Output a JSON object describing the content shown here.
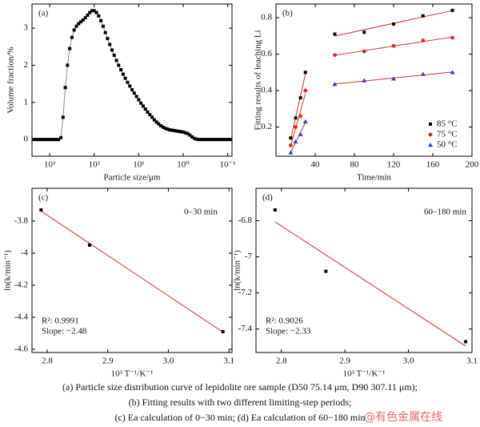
{
  "chart_data": [
    {
      "type": "line",
      "panel_label": "(a)",
      "x_label": "Particle size/μm",
      "y_label": "Volume fraction/%",
      "xscale": "log",
      "xlim": [
        2500,
        0.08
      ],
      "ylim": [
        -0.45,
        3.65
      ],
      "xticks": [
        {
          "value": 1000,
          "label": "10³"
        },
        {
          "value": 100,
          "label": "10²"
        },
        {
          "value": 10,
          "label": "10¹"
        },
        {
          "value": 1,
          "label": "10⁰"
        },
        {
          "value": 0.1,
          "label": "10⁻¹"
        }
      ],
      "yticks": [
        0,
        1,
        2,
        3
      ],
      "series": [
        {
          "color": "#000000",
          "line_color": "#8c8c8c",
          "marker": "square",
          "x": [
            2240,
            2000,
            1780,
            1580,
            1410,
            1260,
            1120,
            1000,
            891,
            794,
            708,
            631,
            562,
            501,
            447,
            398,
            355,
            316,
            282,
            251,
            224,
            200,
            178,
            158,
            141,
            126,
            112,
            100,
            89.1,
            79.4,
            70.8,
            63.1,
            56.2,
            50.1,
            44.7,
            39.8,
            35.5,
            31.6,
            28.2,
            25.1,
            22.4,
            20,
            17.8,
            15.8,
            14.1,
            12.6,
            11.2,
            10,
            8.91,
            7.94,
            7.08,
            6.31,
            5.62,
            5.01,
            4.47,
            3.98,
            3.55,
            3.16,
            2.82,
            2.51,
            2.24,
            2,
            1.78,
            1.58,
            1.41,
            1.26,
            1.12,
            1,
            0.891,
            0.794,
            0.708,
            0.631,
            0.562,
            0.501,
            0.447,
            0.398,
            0.355,
            0.316,
            0.282,
            0.251,
            0.224,
            0.2,
            0.178,
            0.158,
            0.141,
            0.126,
            0.112,
            0.1,
            0.0891
          ],
          "values": [
            0,
            0,
            0,
            0,
            0,
            0,
            0,
            0,
            0,
            0,
            0,
            0,
            0.05,
            0.6,
            1.4,
            2.0,
            2.45,
            2.75,
            2.95,
            3.05,
            3.12,
            3.17,
            3.22,
            3.28,
            3.35,
            3.42,
            3.47,
            3.47,
            3.42,
            3.33,
            3.2,
            3.05,
            2.88,
            2.72,
            2.56,
            2.41,
            2.27,
            2.13,
            2.0,
            1.88,
            1.76,
            1.65,
            1.54,
            1.44,
            1.34,
            1.25,
            1.16,
            1.07,
            0.98,
            0.9,
            0.82,
            0.74,
            0.67,
            0.6,
            0.53,
            0.47,
            0.42,
            0.37,
            0.33,
            0.3,
            0.28,
            0.26,
            0.25,
            0.24,
            0.23,
            0.22,
            0.21,
            0.2,
            0.18,
            0.16,
            0.12,
            0.07,
            0.03,
            0.01,
            0,
            0,
            0,
            0,
            0,
            0,
            0,
            0,
            0,
            0,
            0,
            0,
            0,
            0,
            0
          ]
        }
      ]
    },
    {
      "type": "scatter",
      "panel_label": "(b)",
      "x_label": "Time/min",
      "y_label": "Fitting results of leaching Li",
      "xlim": [
        0,
        200
      ],
      "ylim": [
        0.04,
        0.875
      ],
      "xticks": [
        40,
        80,
        120,
        160,
        200
      ],
      "yticks": [
        0.2,
        0.4,
        0.6,
        0.8
      ],
      "trendline": true,
      "trendline_color": "#d9302a",
      "legend": "lower right",
      "series": [
        {
          "name": "85 °C",
          "color": "#000000",
          "marker": "square",
          "x": [
            15,
            20,
            25,
            30,
            null,
            60,
            90,
            120,
            150,
            180
          ],
          "values": [
            0.14,
            0.25,
            0.36,
            0.5,
            null,
            0.71,
            0.72,
            0.765,
            0.81,
            0.84
          ]
        },
        {
          "name": "75 °C",
          "color": "#e0262a",
          "marker": "circle",
          "x": [
            15,
            20,
            25,
            30,
            null,
            60,
            90,
            120,
            150,
            180
          ],
          "values": [
            0.1,
            0.2,
            0.26,
            0.4,
            null,
            0.595,
            0.615,
            0.645,
            0.675,
            0.69
          ]
        },
        {
          "name": "50 °C",
          "color": "#2a3fd0",
          "marker": "triangle",
          "x": [
            15,
            20,
            25,
            30,
            null,
            60,
            90,
            120,
            150,
            180
          ],
          "values": [
            0.06,
            0.12,
            0.16,
            0.23,
            null,
            0.435,
            0.455,
            0.465,
            0.49,
            0.5
          ]
        }
      ]
    },
    {
      "type": "scatter",
      "panel_label": "(c)",
      "x_label": "10³ T⁻¹/K⁻¹",
      "y_label": "ln(k/min⁻¹)",
      "xlim": [
        2.775,
        3.105
      ],
      "ylim": [
        -4.62,
        -3.595
      ],
      "xticks": [
        2.8,
        2.9,
        {
          "value": 3,
          "label": "3.0"
        },
        3.1
      ],
      "yticks": [
        -3.8,
        -4,
        -4.2,
        -4.4,
        -4.6
      ],
      "trendline": true,
      "trendline_color": "#d9302a",
      "annotations": [
        "0–30 min",
        "R²: 0.9991",
        "Slope: −2.48"
      ],
      "series": [
        {
          "color": "#000000",
          "marker": "square",
          "x": [
            2.79,
            2.87,
            3.09
          ],
          "values": [
            -3.73,
            -3.95,
            -4.49
          ]
        }
      ]
    },
    {
      "type": "scatter",
      "panel_label": "(d)",
      "x_label": "10³ T⁻¹/K⁻¹",
      "y_label": "ln(k/min⁻¹)",
      "xlim": [
        2.76,
        3.1
      ],
      "ylim": [
        -7.53,
        -6.62
      ],
      "xticks": [
        2.8,
        2.9,
        {
          "value": 3,
          "label": "3.0"
        },
        3.1
      ],
      "yticks": [
        -6.8,
        -7,
        -7.2,
        -7.4
      ],
      "trendline": true,
      "trendline_color": "#d9302a",
      "annotations": [
        "60–180 min",
        "R²: 0.9026",
        "Slope: −2.33"
      ],
      "series": [
        {
          "color": "#000000",
          "marker": "square",
          "x": [
            2.79,
            2.87,
            3.09
          ],
          "values": [
            -6.74,
            -7.08,
            -7.47
          ]
        }
      ]
    }
  ],
  "caption": [
    "(a) Particle size distribution curve of lepidolite ore sample (D50 75.14 μm, D90 307.11 μm);",
    "(b) Fitting results with two different limiting-step periods;",
    "(c) Ea calculation of 0−30 min; (d) Ea calculation of 60−180 min"
  ],
  "watermark": "@有色金属在线"
}
